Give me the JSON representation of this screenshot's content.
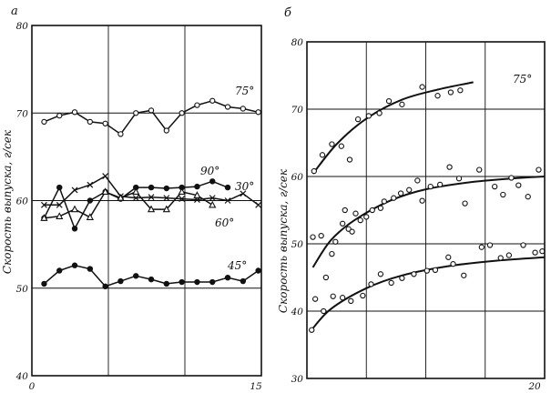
{
  "chart_data": [
    {
      "panel": "а",
      "type": "line",
      "xlim": [
        0,
        15
      ],
      "ylim": [
        40,
        80
      ],
      "ylabel": "Скорость выпуска, г/сек",
      "x_ticks": [
        "0",
        "15"
      ],
      "y_ticks": [
        "40",
        "50",
        "60",
        "70",
        "80"
      ],
      "grid": true,
      "series": [
        {
          "name": "75°",
          "marker": "open-circle",
          "x": [
            0.8,
            1.8,
            2.8,
            3.8,
            4.8,
            5.8,
            6.8,
            7.8,
            8.8,
            9.8,
            10.8,
            11.8,
            12.8,
            13.8,
            14.8
          ],
          "y": [
            69,
            69.7,
            70.1,
            69,
            68.8,
            67.6,
            70,
            70.3,
            68,
            70,
            70.9,
            71.4,
            70.7,
            70.5,
            70.1
          ]
        },
        {
          "name": "90°",
          "marker": "filled-circle",
          "x": [
            0.8,
            1.8,
            2.8,
            3.8,
            4.8,
            5.8,
            6.8,
            7.8,
            8.8,
            9.8,
            10.8,
            11.8,
            12.8
          ],
          "y": [
            58,
            61.5,
            56.8,
            60,
            61,
            60.2,
            61.5,
            61.5,
            61.4,
            61.5,
            61.6,
            62.2,
            61.5
          ]
        },
        {
          "name": "30°",
          "marker": "cross",
          "x": [
            0.8,
            1.8,
            2.8,
            3.8,
            4.8,
            5.8,
            6.8,
            7.8,
            8.8,
            9.8,
            10.8,
            11.8,
            12.8,
            13.8,
            14.8
          ],
          "y": [
            59.5,
            59.5,
            61.2,
            61.8,
            62.8,
            60.5,
            60.3,
            60.4,
            60.3,
            60.2,
            60.1,
            60.3,
            60,
            60.8,
            59.5
          ]
        },
        {
          "name": "60°",
          "marker": "open-triangle",
          "x": [
            0.8,
            1.8,
            2.8,
            3.8,
            4.8,
            5.8,
            6.8,
            7.8,
            8.8,
            9.8,
            10.8,
            11.8
          ],
          "y": [
            58,
            58.2,
            59,
            58.1,
            61,
            60.3,
            61,
            59,
            59,
            61,
            60.6,
            59.5
          ]
        },
        {
          "name": "45°",
          "marker": "filled-circle",
          "x": [
            0.8,
            1.8,
            2.8,
            3.8,
            4.8,
            5.8,
            6.8,
            7.8,
            8.8,
            9.8,
            10.8,
            11.8,
            12.8,
            13.8,
            14.8
          ],
          "y": [
            50.5,
            52,
            52.6,
            52.2,
            50.2,
            50.8,
            51.4,
            51,
            50.5,
            50.7,
            50.7,
            50.7,
            51.2,
            50.8,
            52
          ]
        }
      ]
    },
    {
      "panel": "б",
      "type": "scatter",
      "xlim": [
        0,
        20
      ],
      "ylim": [
        30,
        80
      ],
      "ylabel": "Скорость выпуска, г/сек",
      "x_ticks": [
        "20"
      ],
      "y_ticks": [
        "30",
        "40",
        "50",
        "60",
        "70",
        "80"
      ],
      "grid": true,
      "series": [
        {
          "name": "75°",
          "marker": "open-circle",
          "points": [
            [
              0.6,
              60.8
            ],
            [
              1.3,
              63.2
            ],
            [
              2.1,
              64.8
            ],
            [
              2.9,
              64.5
            ],
            [
              3.6,
              62.5
            ],
            [
              4.3,
              68.5
            ],
            [
              5.2,
              69
            ],
            [
              6.1,
              69.4
            ],
            [
              6.9,
              71.2
            ],
            [
              8,
              70.7
            ],
            [
              9.7,
              73.3
            ],
            [
              11,
              72
            ],
            [
              12.1,
              72.5
            ],
            [
              12.9,
              72.8
            ]
          ],
          "fit_x": [
            0.5,
            2.5,
            5,
            8,
            11,
            14
          ],
          "fit_y": [
            60.4,
            64.8,
            68.6,
            71.4,
            72.9,
            74
          ]
        },
        {
          "name": "",
          "marker": "open-circle",
          "points": [
            [
              0.5,
              51
            ],
            [
              1.2,
              51.2
            ],
            [
              1.6,
              45
            ],
            [
              2.1,
              48.5
            ],
            [
              2.4,
              50.3
            ],
            [
              3,
              53
            ],
            [
              3.2,
              55
            ],
            [
              3.5,
              52.2
            ],
            [
              3.8,
              51.8
            ],
            [
              4.1,
              54.5
            ],
            [
              4.5,
              53.5
            ],
            [
              5,
              54
            ],
            [
              5.5,
              55
            ],
            [
              6.2,
              55.3
            ],
            [
              6.5,
              56.3
            ],
            [
              7.3,
              56.8
            ],
            [
              7.9,
              57.5
            ],
            [
              8.6,
              58
            ],
            [
              9.3,
              59.4
            ],
            [
              9.7,
              56.4
            ],
            [
              10.4,
              58.5
            ],
            [
              11.2,
              58.8
            ],
            [
              12,
              61.4
            ],
            [
              12.8,
              59.7
            ],
            [
              13.3,
              56
            ],
            [
              14.5,
              61
            ],
            [
              15.8,
              58.5
            ],
            [
              16.5,
              57.3
            ],
            [
              17.2,
              59.8
            ],
            [
              17.8,
              58.7
            ],
            [
              18.6,
              57
            ],
            [
              19.5,
              61
            ]
          ],
          "fit_x": [
            0.5,
            2,
            4,
            7,
            10,
            14,
            18,
            20
          ],
          "fit_y": [
            46.5,
            50.5,
            53.5,
            56.4,
            58.1,
            59.2,
            59.8,
            60
          ]
        },
        {
          "name": "",
          "marker": "open-circle",
          "points": [
            [
              0.4,
              37.2
            ],
            [
              0.7,
              41.8
            ],
            [
              1.4,
              40
            ],
            [
              2.2,
              42.2
            ],
            [
              3,
              42
            ],
            [
              3.7,
              41.5
            ],
            [
              4.7,
              42.3
            ],
            [
              5.4,
              44
            ],
            [
              6.2,
              45.5
            ],
            [
              7.1,
              44.2
            ],
            [
              8,
              44.9
            ],
            [
              9,
              45.5
            ],
            [
              10.1,
              46
            ],
            [
              10.8,
              46.1
            ],
            [
              11.9,
              48
            ],
            [
              12.3,
              47
            ],
            [
              13.2,
              45.3
            ],
            [
              14.7,
              49.5
            ],
            [
              15.4,
              49.8
            ],
            [
              16.3,
              47.9
            ],
            [
              17,
              48.3
            ],
            [
              18.2,
              49.8
            ],
            [
              19.2,
              48.7
            ],
            [
              19.8,
              48.9
            ]
          ],
          "fit_x": [
            0.3,
            2,
            5,
            8,
            12,
            16,
            20
          ],
          "fit_y": [
            37,
            40.3,
            43.4,
            45.3,
            46.7,
            47.5,
            48
          ]
        }
      ]
    }
  ]
}
